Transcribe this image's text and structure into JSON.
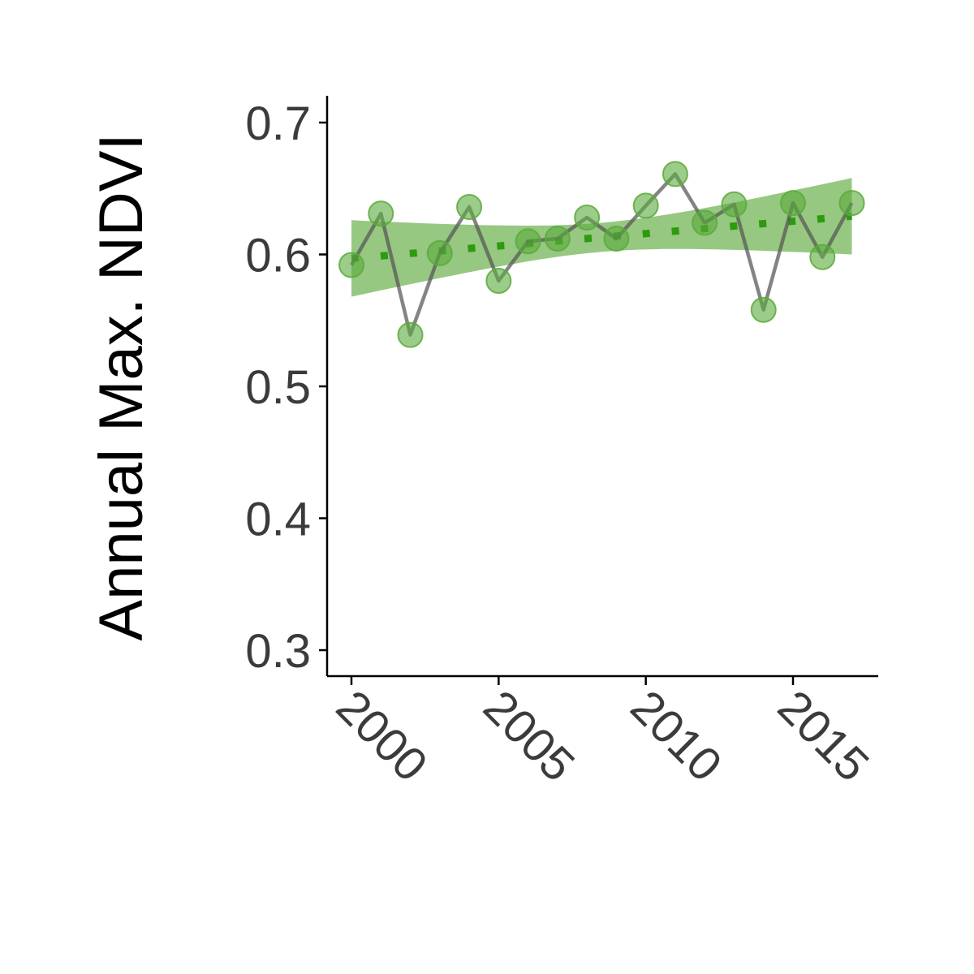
{
  "chart_data": {
    "type": "line",
    "title": "",
    "xlabel": "",
    "ylabel": "Annual Max. NDVI",
    "xlim": [
      1999.2,
      2018
    ],
    "ylim": [
      0.28,
      0.72
    ],
    "x_ticks": [
      2000,
      2005,
      2010,
      2015
    ],
    "y_ticks": [
      0.3,
      0.4,
      0.5,
      0.6,
      0.7
    ],
    "x_tick_labels": [
      "2000",
      "2005",
      "2010",
      "2015"
    ],
    "y_tick_labels": [
      "0.3",
      "0.4",
      "0.5",
      "0.6",
      "0.7"
    ],
    "grid": false,
    "legend": "none",
    "series": [
      {
        "x": [
          2000,
          2001,
          2002,
          2003,
          2004,
          2005,
          2006,
          2007,
          2008,
          2009,
          2010,
          2011,
          2012,
          2013,
          2014,
          2015,
          2016,
          2017
        ],
        "values": [
          0.592,
          0.631,
          0.539,
          0.601,
          0.636,
          0.58,
          0.61,
          0.612,
          0.628,
          0.612,
          0.637,
          0.661,
          0.624,
          0.638,
          0.558,
          0.639,
          0.598,
          0.639
        ]
      }
    ],
    "trend": {
      "x": [
        2000,
        2017
      ],
      "values": [
        0.597,
        0.629
      ],
      "ci_lower": [
        0.569,
        0.6
      ],
      "ci_upper": [
        0.627,
        0.658
      ]
    },
    "colors": {
      "points": "#5aaa3c",
      "line": "#555555",
      "trend": "#2e9a10",
      "band": "#6ab04c",
      "axis": "#000000",
      "tick_text": "#3b3b3b"
    }
  }
}
